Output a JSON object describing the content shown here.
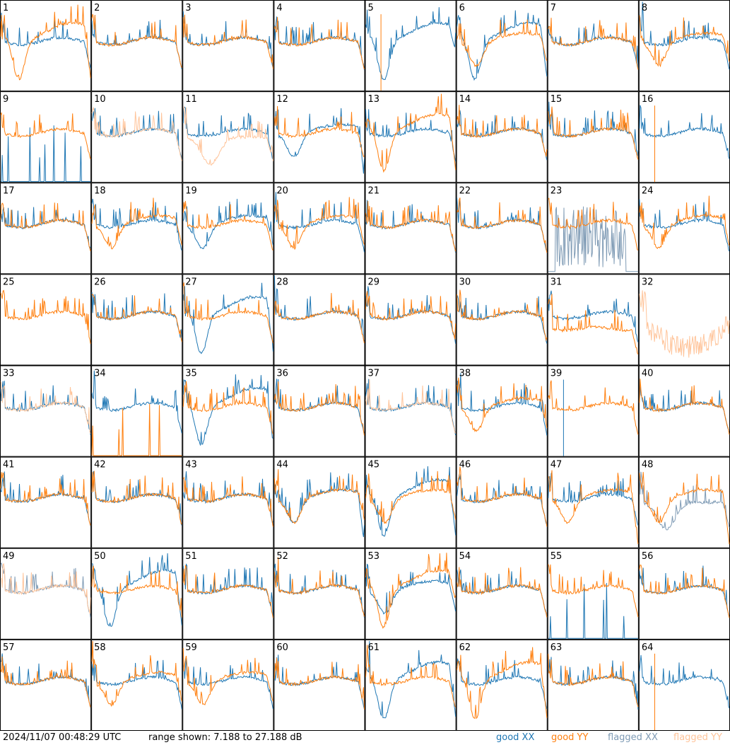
{
  "chart_data": {
    "type": "line",
    "timestamp": "2024/11/07 00:48:29 UTC",
    "range_text": "range shown: 7.188 to 27.188 dB",
    "ylim": [
      7.188,
      27.188
    ],
    "grid_cols": 8,
    "grid_rows": 8,
    "panel_labels": [
      "1",
      "2",
      "3",
      "4",
      "5",
      "6",
      "7",
      "8",
      "9",
      "10",
      "11",
      "12",
      "13",
      "14",
      "15",
      "16",
      "17",
      "18",
      "19",
      "20",
      "21",
      "22",
      "23",
      "24",
      "25",
      "26",
      "27",
      "28",
      "29",
      "30",
      "31",
      "32",
      "33",
      "34",
      "35",
      "36",
      "37",
      "38",
      "39",
      "40",
      "41",
      "42",
      "43",
      "44",
      "45",
      "46",
      "47",
      "48",
      "49",
      "50",
      "51",
      "52",
      "53",
      "54",
      "55",
      "56",
      "57",
      "58",
      "59",
      "60",
      "61",
      "62",
      "63",
      "64"
    ],
    "legend": [
      {
        "label": "good XX",
        "color": "#1f77b4"
      },
      {
        "label": "good YY",
        "color": "#ff7f0e"
      },
      {
        "label": "flagged XX",
        "color": "#7f9bb5"
      },
      {
        "label": "flagged YY",
        "color": "#ffc49a"
      }
    ],
    "panel_profiles": {
      "1": {
        "xx": "flat",
        "yy": "dip_deep",
        "yy_end": "drop"
      },
      "5": {
        "xx": "dip_deep",
        "yy": "absent_spike"
      },
      "6": {
        "xx": "dip_deep",
        "yy": "dip_mid",
        "xx_end": "drop"
      },
      "8": {
        "xx": "flat",
        "yy": "dip_mid"
      },
      "9": {
        "xx": "sparse_spikes_low",
        "yy": "flat"
      },
      "10": {
        "xx": "flat",
        "yy": "flagged_flat"
      },
      "11": {
        "xx": "flat",
        "yy": "flagged_dip"
      },
      "12": {
        "xx": "dip_mid",
        "yy": "flat",
        "xx_end": "drop"
      },
      "13": {
        "xx": "flat",
        "yy": "dip_deep",
        "yy_end": "drop"
      },
      "16": {
        "xx": "flat",
        "yy": "absent_spike"
      },
      "18": {
        "xx": "flat",
        "yy": "dip_mid"
      },
      "19": {
        "xx": "dip_mid",
        "yy": "flat"
      },
      "20": {
        "xx": "flat",
        "yy": "dip_mid"
      },
      "23": {
        "xx": "flagged_noise",
        "yy": "flat"
      },
      "24": {
        "xx": "flat",
        "yy": "dip_mid"
      },
      "25": {
        "xx": "absent",
        "yy": "flat"
      },
      "27": {
        "xx": "dip_deep",
        "yy": "flat",
        "xx_end": "drop"
      },
      "31": {
        "xx": "flat",
        "yy": "low_flat"
      },
      "32": {
        "xx": "absent",
        "yy": "flagged_noisy"
      },
      "33": {
        "xx": "flat",
        "yy": "flagged_flat"
      },
      "34": {
        "xx": "flat",
        "yy": "sparse_spikes_low"
      },
      "35": {
        "xx": "dip_deep",
        "yy": "flat",
        "xx_end": "drop"
      },
      "37": {
        "xx": "flat",
        "yy": "flagged_flat"
      },
      "38": {
        "xx": "flat",
        "yy": "dip_mid"
      },
      "39": {
        "xx": "absent_spike",
        "yy": "flat"
      },
      "44": {
        "xx": "dip_mid",
        "yy": "dip_mid",
        "xx_end": "drop"
      },
      "45": {
        "xx": "dip_deep",
        "yy": "dip_mid",
        "xx_end": "drop"
      },
      "47": {
        "xx": "flat",
        "yy": "dip_mid",
        "yy_end": "drop"
      },
      "48": {
        "xx": "flagged_dip",
        "yy": "dip_mid",
        "yy_end": "drop"
      },
      "49": {
        "xx": "flagged_flat",
        "yy": "flagged_flat"
      },
      "50": {
        "xx": "dip_deep",
        "yy": "flat",
        "xx_end": "drop"
      },
      "53": {
        "xx": "dip_mid",
        "yy": "dip_deep"
      },
      "55": {
        "xx": "sparse_spikes_low",
        "yy": "flat"
      },
      "58": {
        "xx": "flat",
        "yy": "dip_mid"
      },
      "59": {
        "xx": "flat",
        "yy": "dip_mid"
      },
      "61": {
        "xx": "dip_deep",
        "yy": "flat",
        "xx_end": "drop"
      },
      "62": {
        "xx": "flat",
        "yy": "dip_deep",
        "yy_end": "drop"
      },
      "64": {
        "xx": "flat",
        "yy": "absent_spike"
      }
    },
    "default_profile": {
      "xx": "flat",
      "yy": "flat"
    }
  }
}
